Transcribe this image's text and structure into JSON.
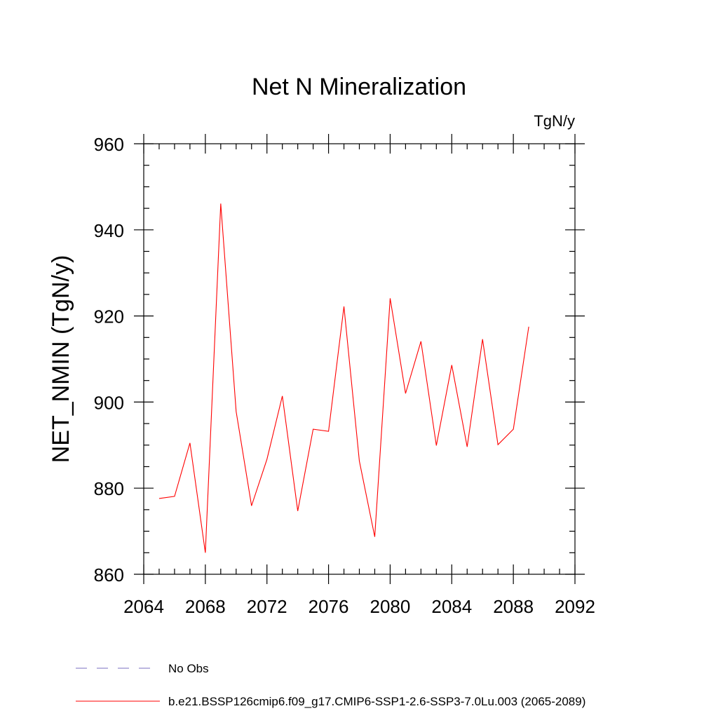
{
  "chart_data": {
    "type": "line",
    "title": "Net N Mineralization",
    "units": "TgN/y",
    "xlabel": "",
    "ylabel": "NET_NMIN  (TgN/y)",
    "xlim": [
      2064,
      2092
    ],
    "ylim": [
      860,
      960
    ],
    "x_ticks": [
      2064,
      2068,
      2072,
      2076,
      2080,
      2084,
      2088,
      2092
    ],
    "y_ticks": [
      860,
      880,
      900,
      920,
      940,
      960
    ],
    "x_minor_step": 1,
    "y_minor_step": 5,
    "grid": false,
    "legend_position": "bottom",
    "series": [
      {
        "name": "b.e21.BSSP126cmip6.f09_g17.CMIP6-SSP1-2.6-SSP3-7.0Lu.003 (2065-2089)",
        "color": "#ff0000",
        "style": "solid",
        "x": [
          2065,
          2066,
          2067,
          2068,
          2069,
          2070,
          2071,
          2072,
          2073,
          2074,
          2075,
          2076,
          2077,
          2078,
          2079,
          2080,
          2081,
          2082,
          2083,
          2084,
          2085,
          2086,
          2087,
          2088,
          2089
        ],
        "values": [
          877.6,
          878.1,
          890.5,
          865.0,
          946.1,
          897.8,
          875.9,
          886.7,
          901.4,
          874.7,
          893.7,
          893.2,
          922.2,
          886.3,
          868.7,
          924.1,
          902.0,
          914.1,
          889.9,
          908.6,
          889.6,
          914.6,
          890.1,
          893.7,
          917.5
        ]
      }
    ],
    "legend": [
      {
        "label": "No Obs",
        "color": "#7a6fc0",
        "style": "dashed"
      },
      {
        "label": "b.e21.BSSP126cmip6.f09_g17.CMIP6-SSP1-2.6-SSP3-7.0Lu.003 (2065-2089)",
        "color": "#ff0000",
        "style": "solid"
      }
    ]
  }
}
